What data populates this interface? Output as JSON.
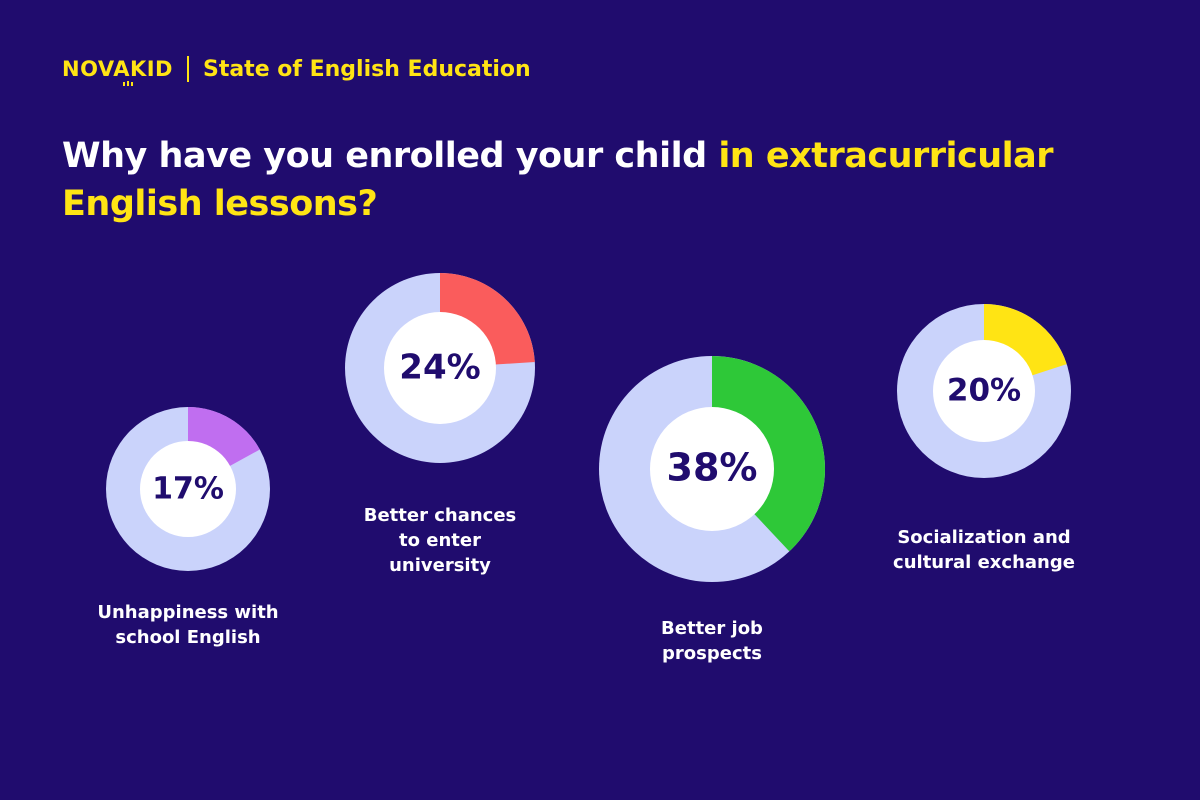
{
  "header": {
    "brand": "NOVAKID",
    "subtitle": "State of English Education"
  },
  "title": {
    "part1": "Why have you enrolled your child ",
    "part2": "in extracurricular English lessons?"
  },
  "colors": {
    "background": "#200c6e",
    "accent": "#ffe414",
    "ring_remainder": "#cad3fb",
    "center": "#ffffff",
    "percent_text": "#200c6e"
  },
  "chart_data": {
    "type": "pie",
    "subtype": "donut",
    "title": "Why have you enrolled your child in extracurricular English lessons?",
    "unit": "%",
    "slices": [
      {
        "label": "Unhappiness with\nschool English",
        "value": 17,
        "display": "17%",
        "color": "#c06ef0"
      },
      {
        "label": "Better chances\nto enter\nuniversity",
        "value": 24,
        "display": "24%",
        "color": "#fa5c5c"
      },
      {
        "label": "Better job\nprospects",
        "value": 38,
        "display": "38%",
        "color": "#2ec838"
      },
      {
        "label": "Socialization and\ncultural exchange",
        "value": 20,
        "display": "20%",
        "color": "#ffe414"
      }
    ]
  }
}
